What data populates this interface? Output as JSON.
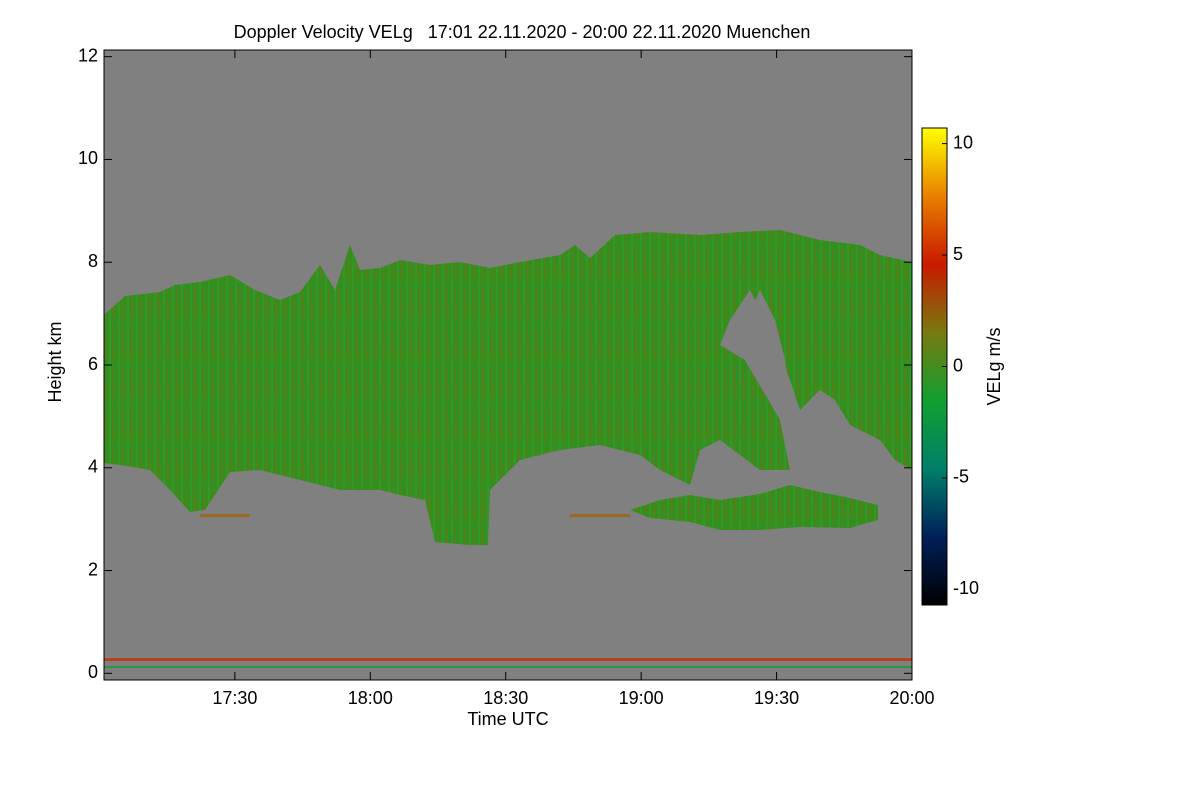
{
  "chart_data": {
    "type": "time-height",
    "title": "Doppler Velocity VELg   17:01 22.11.2020 - 20:00 22.11.2020 Muenchen",
    "x_label": "Time UTC",
    "y_label": "Height km",
    "xlim": [
      17.0167,
      20.0
    ],
    "xticks": [
      {
        "value": 17.5,
        "label": "17:30"
      },
      {
        "value": 18.0,
        "label": "18:00"
      },
      {
        "value": 18.5,
        "label": "18:30"
      },
      {
        "value": 19.0,
        "label": "19:00"
      },
      {
        "value": 19.5,
        "label": "19:30"
      },
      {
        "value": 20.0,
        "label": "20:00"
      }
    ],
    "ylim": [
      -0.13,
      12.13
    ],
    "yticks": [
      0,
      2,
      4,
      6,
      8,
      10,
      12
    ],
    "background": "#808080",
    "colorbar": {
      "label": "VELg m/s",
      "lim": [
        -10.7,
        10.7
      ],
      "ticks": [
        -10,
        -5,
        0,
        5,
        10
      ],
      "colors": [
        "#000000",
        "#00205a",
        "#00806a",
        "#10a030",
        "#787a10",
        "#c81a00",
        "#e88000",
        "#ffff00"
      ]
    }
  }
}
